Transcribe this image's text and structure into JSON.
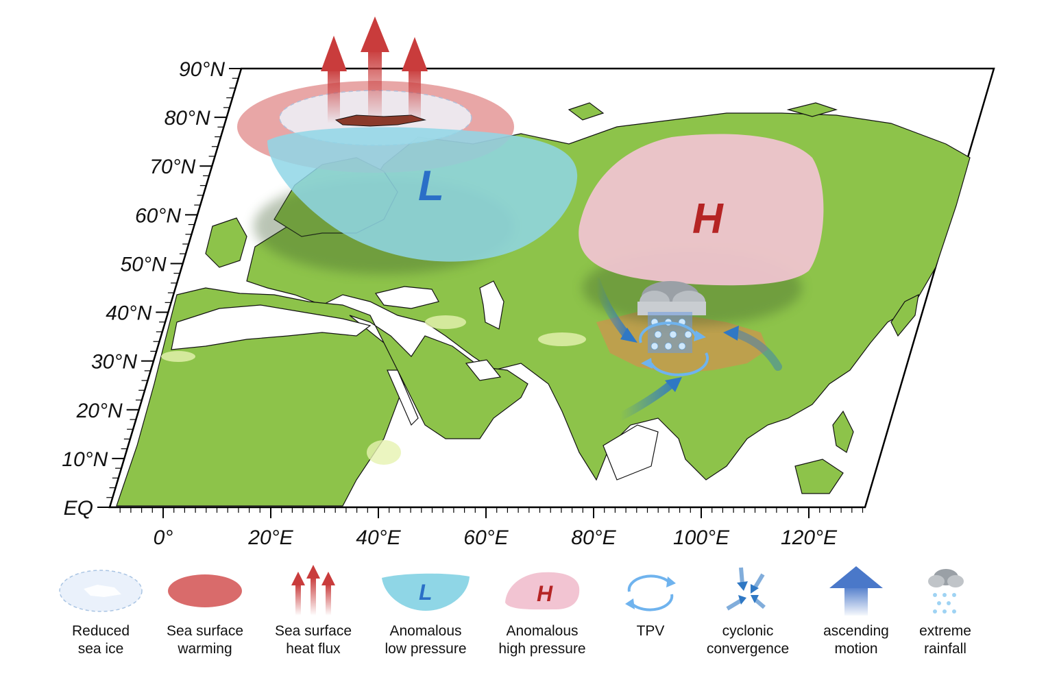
{
  "map": {
    "lat_labels": [
      "90°N",
      "80°N",
      "70°N",
      "60°N",
      "50°N",
      "40°N",
      "30°N",
      "20°N",
      "10°N",
      "EQ"
    ],
    "lon_labels": [
      "0°",
      "20°E",
      "40°E",
      "60°E",
      "80°E",
      "100°E",
      "120°E"
    ],
    "low_symbol": "L",
    "high_symbol": "H",
    "colors": {
      "land": "#8dc34a",
      "plateau": "#c59a4e",
      "low_pressure": "#8fd6e6",
      "high_pressure": "#f2c4d2",
      "warming": "#d96b6b",
      "heat_flux": "#c93c3c",
      "low_text": "#2a6fc7",
      "high_text": "#b52424"
    }
  },
  "legend": [
    {
      "icon": "reduced-sea-ice-icon",
      "label": "Reduced\nsea ice"
    },
    {
      "icon": "sea-surface-warming-icon",
      "label": "Sea surface\nwarming"
    },
    {
      "icon": "heat-flux-arrows-icon",
      "label": "Sea surface\nheat flux"
    },
    {
      "icon": "low-pressure-icon",
      "label": "Anomalous\nlow pressure",
      "symbol": "L"
    },
    {
      "icon": "high-pressure-icon",
      "label": "Anomalous\nhigh pressure",
      "symbol": "H"
    },
    {
      "icon": "tpv-circular-arrows-icon",
      "label": "TPV"
    },
    {
      "icon": "cyclonic-convergence-icon",
      "label": "cyclonic\nconvergence"
    },
    {
      "icon": "ascending-motion-icon",
      "label": "ascending\nmotion"
    },
    {
      "icon": "extreme-rainfall-icon",
      "label": "extreme\nrainfall"
    }
  ]
}
